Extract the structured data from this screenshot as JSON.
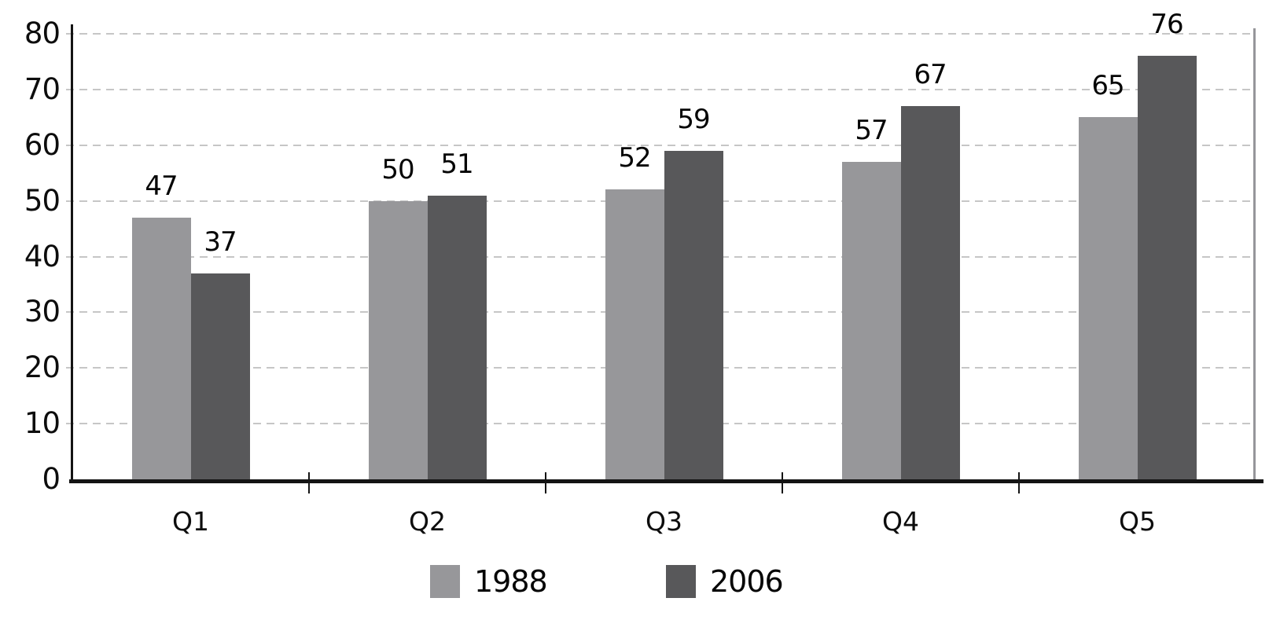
{
  "chart_data": {
    "type": "bar",
    "categories": [
      "Q1",
      "Q2",
      "Q3",
      "Q4",
      "Q5"
    ],
    "series": [
      {
        "name": "1988",
        "color": "#97979a",
        "values": [
          47,
          50,
          52,
          57,
          65
        ]
      },
      {
        "name": "2006",
        "color": "#58585a",
        "values": [
          37,
          51,
          59,
          67,
          76
        ]
      }
    ],
    "title": "",
    "xlabel": "",
    "ylabel": "",
    "ylim": [
      0,
      80
    ],
    "yticks": [
      0,
      10,
      20,
      30,
      40,
      50,
      60,
      70,
      80
    ],
    "grid": "horizontal-dashed",
    "data_labels": true,
    "legend_position": "bottom"
  },
  "colors": {
    "background": "#ffffff",
    "series_1988": "#97979a",
    "series_2006": "#58585a",
    "axis": "#141414",
    "gridline": "#c6c6c6",
    "right_border": "#96969a",
    "text": "#050505"
  }
}
